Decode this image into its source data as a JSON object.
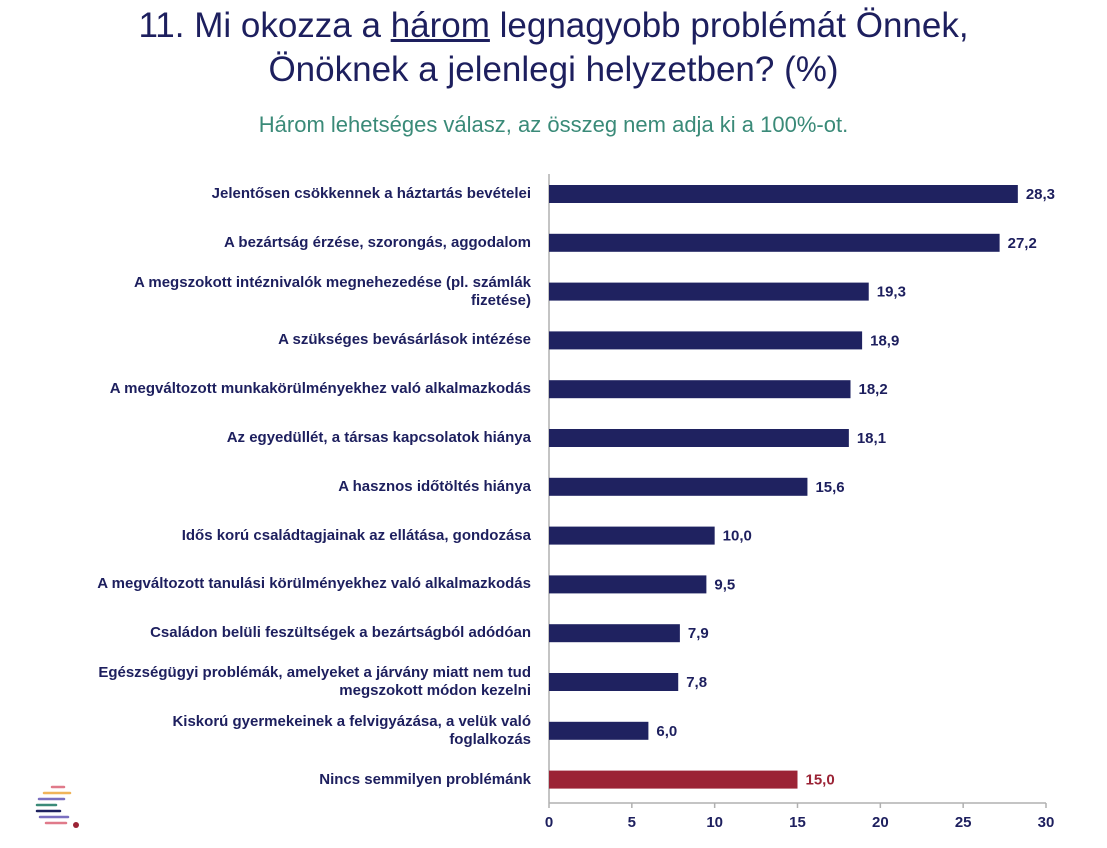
{
  "title": {
    "part1": "11. Mi okozza a ",
    "underlined": "három",
    "part2": " legnagyobb problémát Önnek,",
    "line2": "Önöknek a jelenlegi helyzetben? (%)"
  },
  "subtitle": "Három lehetséges válasz, az összeg nem adja ki a 100%-ot.",
  "colors": {
    "bar": "#1f2260",
    "highlight": "#9b2335",
    "axis": "#b0b0b0",
    "text": "#1d1f5e"
  },
  "chart_data": {
    "type": "bar",
    "orientation": "horizontal",
    "categories": [
      [
        "Jelentősen csökkennek a háztartás bevételei"
      ],
      [
        "A bezártság érzése, szorongás, aggodalom"
      ],
      [
        "A megszokott intéznivalók megnehezedése (pl. számlák",
        "fizetése)"
      ],
      [
        "A szükséges bevásárlások intézése"
      ],
      [
        "A megváltozott munkakörülményekhez való alkalmazkodás"
      ],
      [
        "Az egyedüllét, a társas kapcsolatok hiánya"
      ],
      [
        "A hasznos időtöltés hiánya"
      ],
      [
        "Idős korú családtagjainak az ellátása, gondozása"
      ],
      [
        "A megváltozott tanulási körülményekhez való alkalmazkodás"
      ],
      [
        "Családon belüli feszültségek a bezártságból adódóan"
      ],
      [
        "Egészségügyi problémák, amelyeket a járvány miatt nem tud",
        "megszokott módon kezelni"
      ],
      [
        "Kiskorú gyermekeinek a felvigyázása, a velük való",
        "foglalkozás"
      ],
      [
        "Nincs semmilyen problémánk"
      ]
    ],
    "values": [
      28.3,
      27.2,
      19.3,
      18.9,
      18.2,
      18.1,
      15.6,
      10.0,
      9.5,
      7.9,
      7.8,
      6.0,
      15.0
    ],
    "value_labels": [
      "28,3",
      "27,2",
      "19,3",
      "18,9",
      "18,2",
      "18,1",
      "15,6",
      "10,0",
      "9,5",
      "7,9",
      "7,8",
      "6,0",
      "15,0"
    ],
    "highlight_index": 12,
    "xlim": [
      0,
      30
    ],
    "xticks": [
      "0",
      "5",
      "10",
      "15",
      "20",
      "25",
      "30"
    ],
    "grid": false
  }
}
